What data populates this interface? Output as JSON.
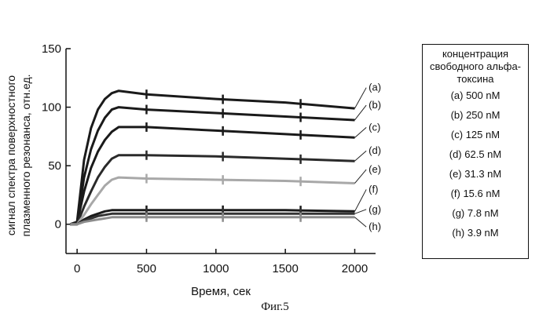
{
  "chart_data": {
    "type": "line",
    "xlabel": "Время, сек",
    "ylabel_line1": "сигнал спектра поверхностного",
    "ylabel_line2": "плазменного резонанса, отн.ед.",
    "xlim": [
      -80,
      2150
    ],
    "ylim": [
      -25,
      150
    ],
    "xticks": [
      0,
      500,
      1000,
      1500,
      2000
    ],
    "yticks": [
      0,
      50,
      100,
      150
    ],
    "series": [
      {
        "name": "(a)",
        "values": [
          [
            -50,
            0
          ],
          [
            0,
            2
          ],
          [
            50,
            55
          ],
          [
            100,
            82
          ],
          [
            150,
            98
          ],
          [
            200,
            107
          ],
          [
            250,
            112
          ],
          [
            300,
            114
          ],
          [
            500,
            111
          ],
          [
            1000,
            107
          ],
          [
            1500,
            104
          ],
          [
            2000,
            99
          ]
        ],
        "color": "#1a1a1a"
      },
      {
        "name": "(b)",
        "values": [
          [
            -50,
            0
          ],
          [
            0,
            1
          ],
          [
            50,
            40
          ],
          [
            100,
            64
          ],
          [
            150,
            80
          ],
          [
            200,
            91
          ],
          [
            250,
            98
          ],
          [
            300,
            100
          ],
          [
            500,
            98
          ],
          [
            1000,
            95
          ],
          [
            1500,
            92
          ],
          [
            2000,
            89
          ]
        ],
        "color": "#1a1a1a"
      },
      {
        "name": "(c)",
        "values": [
          [
            -50,
            0
          ],
          [
            0,
            1
          ],
          [
            50,
            28
          ],
          [
            100,
            48
          ],
          [
            150,
            62
          ],
          [
            200,
            72
          ],
          [
            250,
            79
          ],
          [
            300,
            83
          ],
          [
            500,
            83
          ],
          [
            1000,
            80
          ],
          [
            1500,
            77
          ],
          [
            2000,
            74
          ]
        ],
        "color": "#1a1a1a"
      },
      {
        "name": "(d)",
        "values": [
          [
            -50,
            0
          ],
          [
            0,
            0
          ],
          [
            50,
            15
          ],
          [
            100,
            28
          ],
          [
            150,
            40
          ],
          [
            200,
            49
          ],
          [
            250,
            56
          ],
          [
            300,
            59
          ],
          [
            500,
            59
          ],
          [
            1000,
            58
          ],
          [
            1500,
            56
          ],
          [
            2000,
            54
          ]
        ],
        "color": "#2a2a2a"
      },
      {
        "name": "(e)",
        "values": [
          [
            -50,
            0
          ],
          [
            0,
            0
          ],
          [
            50,
            8
          ],
          [
            100,
            17
          ],
          [
            150,
            25
          ],
          [
            200,
            33
          ],
          [
            250,
            38
          ],
          [
            300,
            40
          ],
          [
            500,
            39
          ],
          [
            1000,
            38
          ],
          [
            1500,
            37
          ],
          [
            2000,
            35
          ]
        ],
        "color": "#a8a8a8"
      },
      {
        "name": "(f)",
        "values": [
          [
            -50,
            0
          ],
          [
            0,
            0
          ],
          [
            50,
            4
          ],
          [
            100,
            7
          ],
          [
            150,
            9
          ],
          [
            200,
            11
          ],
          [
            250,
            12
          ],
          [
            300,
            12
          ],
          [
            500,
            12
          ],
          [
            1000,
            12
          ],
          [
            1500,
            12
          ],
          [
            2000,
            11
          ]
        ],
        "color": "#1a1a1a"
      },
      {
        "name": "(g)",
        "values": [
          [
            -50,
            0
          ],
          [
            0,
            0
          ],
          [
            50,
            3
          ],
          [
            100,
            5
          ],
          [
            150,
            7
          ],
          [
            200,
            8
          ],
          [
            250,
            9
          ],
          [
            300,
            9
          ],
          [
            500,
            9
          ],
          [
            1000,
            9
          ],
          [
            1500,
            9
          ],
          [
            2000,
            9
          ]
        ],
        "color": "#333333"
      },
      {
        "name": "(h)",
        "values": [
          [
            -50,
            0
          ],
          [
            0,
            0
          ],
          [
            50,
            2
          ],
          [
            100,
            3
          ],
          [
            150,
            4
          ],
          [
            200,
            5
          ],
          [
            250,
            6
          ],
          [
            300,
            6
          ],
          [
            500,
            6
          ],
          [
            1000,
            6
          ],
          [
            1500,
            6
          ],
          [
            2000,
            6
          ]
        ],
        "color": "#8c8c8c"
      }
    ],
    "label_y": [
      114,
      99,
      80,
      60,
      44,
      27,
      10,
      -5
    ],
    "legend": {
      "title": "концентрация свободного альфа-токсина",
      "entries": [
        "(a) 500 nM",
        "(b) 250 nM",
        "(c) 125 nM",
        "(d) 62.5 nM",
        "(e) 31.3 nM",
        "(f) 15.6 nM",
        "(g) 7.8 nM",
        "(h) 3.9 nM"
      ],
      "placement": "right"
    },
    "caption": "Фиг.5"
  }
}
